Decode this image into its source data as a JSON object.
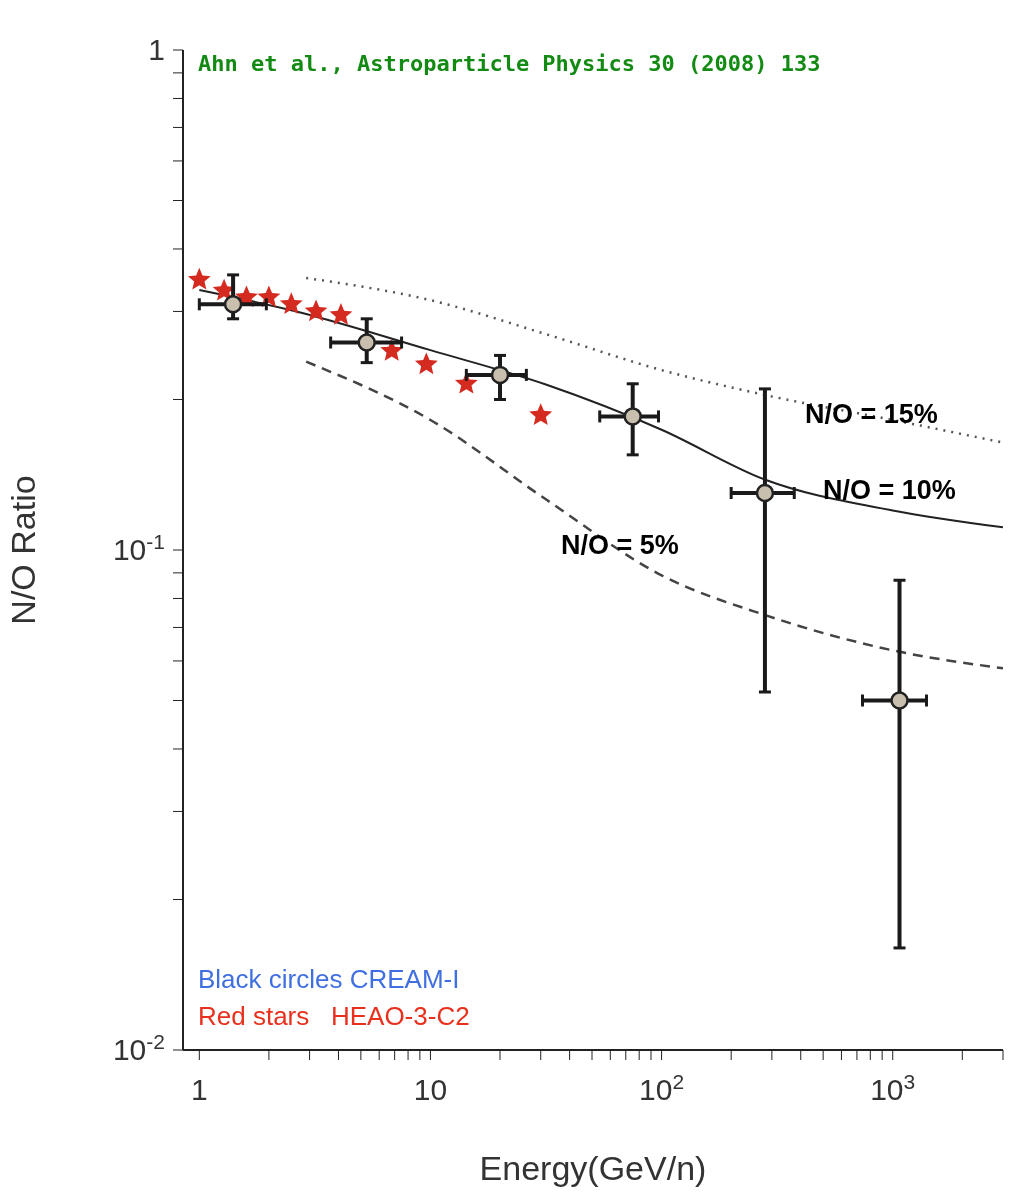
{
  "chart_data": {
    "type": "scatter",
    "xlabel": "Energy(GeV/n)",
    "ylabel": "N/O Ratio",
    "log": "xy",
    "grid": false,
    "xlim": [
      0.85,
      3000
    ],
    "ylim": [
      0.01,
      1
    ],
    "xticks": [
      1,
      {
        "value": 2,
        "label": null
      },
      {
        "value": 3,
        "label": null
      },
      {
        "value": 4,
        "label": null
      },
      {
        "value": 5,
        "label": null
      },
      {
        "value": 6,
        "label": null
      },
      {
        "value": 7,
        "label": null
      },
      {
        "value": 8,
        "label": null
      },
      {
        "value": 9,
        "label": null
      },
      10,
      {
        "value": 20,
        "label": null
      },
      {
        "value": 30,
        "label": null
      },
      {
        "value": 40,
        "label": null
      },
      {
        "value": 50,
        "label": null
      },
      {
        "value": 60,
        "label": null
      },
      {
        "value": 70,
        "label": null
      },
      {
        "value": 80,
        "label": null
      },
      {
        "value": 90,
        "label": null
      },
      {
        "value": 100,
        "label": "10$^{2}$"
      },
      {
        "value": 200,
        "label": null
      },
      {
        "value": 300,
        "label": null
      },
      {
        "value": 400,
        "label": null
      },
      {
        "value": 500,
        "label": null
      },
      {
        "value": 600,
        "label": null
      },
      {
        "value": 700,
        "label": null
      },
      {
        "value": 800,
        "label": null
      },
      {
        "value": 900,
        "label": null
      },
      {
        "value": 1000,
        "label": "10$^{3}$"
      },
      {
        "value": 2000,
        "label": null
      },
      {
        "value": 3000,
        "label": null
      }
    ],
    "yticks": [
      {
        "value": 0.01,
        "label": "10$^{-2}$"
      },
      {
        "value": 0.02,
        "label": null
      },
      {
        "value": 0.03,
        "label": null
      },
      {
        "value": 0.04,
        "label": null
      },
      {
        "value": 0.05,
        "label": null
      },
      {
        "value": 0.06,
        "label": null
      },
      {
        "value": 0.07,
        "label": null
      },
      {
        "value": 0.08,
        "label": null
      },
      {
        "value": 0.09,
        "label": null
      },
      {
        "value": 0.1,
        "label": "10$^{-1}$"
      },
      {
        "value": 0.2,
        "label": null
      },
      {
        "value": 0.3,
        "label": null
      },
      {
        "value": 0.4,
        "label": null
      },
      {
        "value": 0.5,
        "label": null
      },
      {
        "value": 0.6,
        "label": null
      },
      {
        "value": 0.7,
        "label": null
      },
      {
        "value": 0.8,
        "label": null
      },
      {
        "value": 0.9,
        "label": null
      },
      1
    ],
    "series": [
      {
        "type": "line",
        "color": "#555555",
        "line_style": "dotted",
        "marker": "none",
        "x": [
          2.9,
          10,
          31.8,
          100,
          283,
          1000,
          3000
        ],
        "values": [
          0.35,
          0.316,
          0.27,
          0.229,
          0.204,
          0.182,
          0.164
        ]
      },
      {
        "type": "line",
        "color": "#222222",
        "line_style": "solid",
        "marker": "none",
        "x": [
          1,
          2.63,
          10,
          31.8,
          100,
          283,
          1000,
          3000
        ],
        "values": [
          0.331,
          0.3,
          0.251,
          0.214,
          0.174,
          0.138,
          0.12,
          0.111
        ]
      },
      {
        "type": "line",
        "color": "#444444",
        "line_style": "dashed",
        "marker": "none",
        "x": [
          2.9,
          10,
          31.8,
          100,
          283,
          1000,
          3000
        ],
        "values": [
          0.238,
          0.182,
          0.126,
          0.089,
          0.074,
          0.063,
          0.058
        ]
      },
      {
        "color": "#d42a20",
        "marker": "star",
        "x": [
          1.0,
          1.28,
          1.6,
          2.0,
          2.5,
          3.2,
          4.1,
          6.8,
          9.6,
          14.3,
          30
        ],
        "values": [
          0.347,
          0.33,
          0.32,
          0.32,
          0.31,
          0.3,
          0.295,
          0.25,
          0.235,
          0.215,
          0.186
        ]
      },
      {
        "color": "#c8bfae",
        "marker": "circle",
        "x": [
          1.4,
          5.3,
          20,
          75,
          280,
          1070
        ],
        "values": [
          0.31,
          0.26,
          0.224,
          0.185,
          0.13,
          0.05
        ],
        "errors": [
          [
            0.29,
            0.355
          ],
          [
            0.237,
            0.29
          ],
          [
            0.2,
            0.245
          ],
          [
            0.155,
            0.215
          ],
          [
            0.052,
            0.21
          ],
          [
            0.016,
            0.087
          ]
        ],
        "xerrors": [
          [
            1.0,
            1.95
          ],
          [
            3.7,
            7.5
          ],
          [
            14.3,
            26
          ],
          [
            54,
            97
          ],
          [
            200,
            375
          ],
          [
            740,
            1400
          ]
        ]
      }
    ],
    "annotations": [
      "Ahn et al., Astroparticle Physics 30 (2008) 133",
      "N/O = 15%",
      "N/O = 10%",
      "N/O = 5%",
      "Black circles CREAM-I",
      "Red stars   HEAO-3-C2"
    ]
  }
}
